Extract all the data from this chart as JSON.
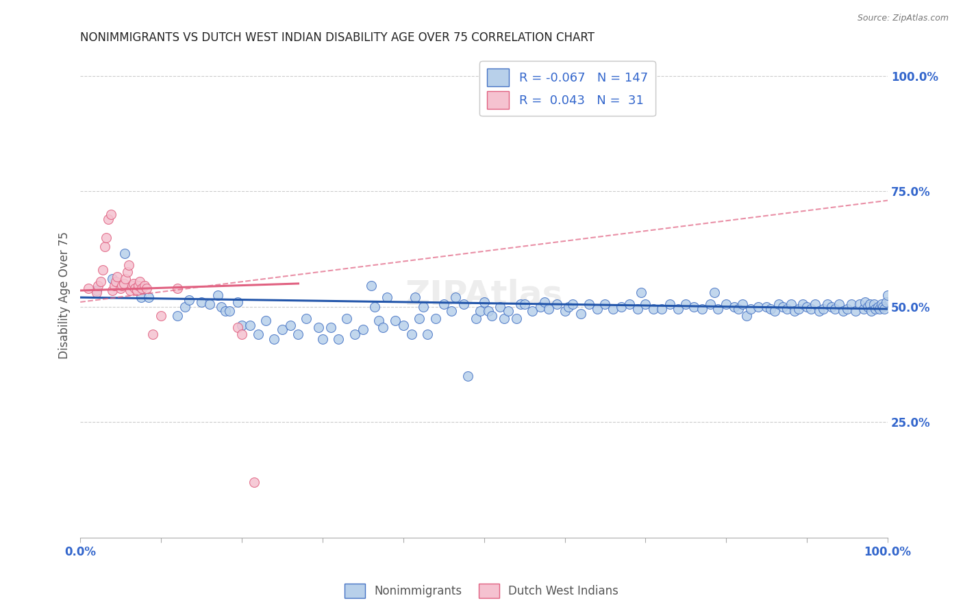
{
  "title": "NONIMMIGRANTS VS DUTCH WEST INDIAN DISABILITY AGE OVER 75 CORRELATION CHART",
  "source": "Source: ZipAtlas.com",
  "ylabel": "Disability Age Over 75",
  "legend_nonimmigrants": "Nonimmigrants",
  "legend_dutch": "Dutch West Indians",
  "R_nonimmigrants": -0.067,
  "N_nonimmigrants": 147,
  "R_dutch": 0.043,
  "N_dutch": 31,
  "blue_fill": "#b8d0ea",
  "blue_edge": "#4472c4",
  "pink_fill": "#f5c2d0",
  "pink_edge": "#e06080",
  "blue_trend_color": "#2255aa",
  "pink_trend_color": "#e06080",
  "axis_color": "#3366cc",
  "title_color": "#222222",
  "grid_color": "#cccccc",
  "bg_color": "#ffffff",
  "xlim": [
    0.0,
    1.0
  ],
  "ylim": [
    0.0,
    1.05
  ],
  "ytick_positions": [
    0.25,
    0.5,
    0.75,
    1.0
  ],
  "ytick_labels": [
    "25.0%",
    "50.0%",
    "75.0%",
    "100.0%"
  ],
  "blue_trendline": [
    [
      0.0,
      0.52
    ],
    [
      1.0,
      0.495
    ]
  ],
  "pink_solid_trendline": [
    [
      0.0,
      0.535
    ],
    [
      0.27,
      0.55
    ]
  ],
  "pink_dashed_trendline": [
    [
      0.0,
      0.51
    ],
    [
      1.0,
      0.73
    ]
  ],
  "blue_scatter": [
    [
      0.02,
      0.535
    ],
    [
      0.04,
      0.56
    ],
    [
      0.055,
      0.615
    ],
    [
      0.075,
      0.52
    ],
    [
      0.085,
      0.52
    ],
    [
      0.12,
      0.48
    ],
    [
      0.13,
      0.5
    ],
    [
      0.135,
      0.515
    ],
    [
      0.15,
      0.51
    ],
    [
      0.16,
      0.505
    ],
    [
      0.17,
      0.525
    ],
    [
      0.175,
      0.5
    ],
    [
      0.18,
      0.49
    ],
    [
      0.185,
      0.49
    ],
    [
      0.195,
      0.51
    ],
    [
      0.2,
      0.46
    ],
    [
      0.21,
      0.46
    ],
    [
      0.22,
      0.44
    ],
    [
      0.23,
      0.47
    ],
    [
      0.24,
      0.43
    ],
    [
      0.25,
      0.45
    ],
    [
      0.26,
      0.46
    ],
    [
      0.27,
      0.44
    ],
    [
      0.28,
      0.475
    ],
    [
      0.295,
      0.455
    ],
    [
      0.3,
      0.43
    ],
    [
      0.31,
      0.455
    ],
    [
      0.32,
      0.43
    ],
    [
      0.33,
      0.475
    ],
    [
      0.34,
      0.44
    ],
    [
      0.35,
      0.45
    ],
    [
      0.36,
      0.545
    ],
    [
      0.365,
      0.5
    ],
    [
      0.37,
      0.47
    ],
    [
      0.375,
      0.455
    ],
    [
      0.38,
      0.52
    ],
    [
      0.39,
      0.47
    ],
    [
      0.4,
      0.46
    ],
    [
      0.41,
      0.44
    ],
    [
      0.415,
      0.52
    ],
    [
      0.42,
      0.475
    ],
    [
      0.425,
      0.5
    ],
    [
      0.43,
      0.44
    ],
    [
      0.44,
      0.475
    ],
    [
      0.45,
      0.505
    ],
    [
      0.46,
      0.49
    ],
    [
      0.465,
      0.52
    ],
    [
      0.475,
      0.505
    ],
    [
      0.48,
      0.35
    ],
    [
      0.49,
      0.475
    ],
    [
      0.495,
      0.49
    ],
    [
      0.5,
      0.51
    ],
    [
      0.505,
      0.49
    ],
    [
      0.51,
      0.48
    ],
    [
      0.52,
      0.5
    ],
    [
      0.525,
      0.475
    ],
    [
      0.53,
      0.49
    ],
    [
      0.54,
      0.475
    ],
    [
      0.545,
      0.505
    ],
    [
      0.55,
      0.505
    ],
    [
      0.56,
      0.49
    ],
    [
      0.57,
      0.5
    ],
    [
      0.575,
      0.51
    ],
    [
      0.58,
      0.495
    ],
    [
      0.59,
      0.505
    ],
    [
      0.6,
      0.49
    ],
    [
      0.605,
      0.5
    ],
    [
      0.61,
      0.505
    ],
    [
      0.62,
      0.485
    ],
    [
      0.63,
      0.505
    ],
    [
      0.64,
      0.495
    ],
    [
      0.65,
      0.505
    ],
    [
      0.66,
      0.495
    ],
    [
      0.67,
      0.5
    ],
    [
      0.68,
      0.505
    ],
    [
      0.69,
      0.495
    ],
    [
      0.695,
      0.53
    ],
    [
      0.7,
      0.505
    ],
    [
      0.71,
      0.495
    ],
    [
      0.72,
      0.495
    ],
    [
      0.73,
      0.505
    ],
    [
      0.74,
      0.495
    ],
    [
      0.75,
      0.505
    ],
    [
      0.76,
      0.5
    ],
    [
      0.77,
      0.495
    ],
    [
      0.78,
      0.505
    ],
    [
      0.785,
      0.53
    ],
    [
      0.79,
      0.495
    ],
    [
      0.8,
      0.505
    ],
    [
      0.81,
      0.5
    ],
    [
      0.815,
      0.495
    ],
    [
      0.82,
      0.505
    ],
    [
      0.825,
      0.48
    ],
    [
      0.83,
      0.495
    ],
    [
      0.84,
      0.5
    ],
    [
      0.85,
      0.5
    ],
    [
      0.855,
      0.495
    ],
    [
      0.86,
      0.49
    ],
    [
      0.865,
      0.505
    ],
    [
      0.87,
      0.5
    ],
    [
      0.875,
      0.495
    ],
    [
      0.88,
      0.505
    ],
    [
      0.885,
      0.49
    ],
    [
      0.89,
      0.495
    ],
    [
      0.895,
      0.505
    ],
    [
      0.9,
      0.5
    ],
    [
      0.905,
      0.495
    ],
    [
      0.91,
      0.505
    ],
    [
      0.915,
      0.49
    ],
    [
      0.92,
      0.495
    ],
    [
      0.925,
      0.505
    ],
    [
      0.93,
      0.5
    ],
    [
      0.935,
      0.495
    ],
    [
      0.94,
      0.505
    ],
    [
      0.945,
      0.49
    ],
    [
      0.95,
      0.495
    ],
    [
      0.955,
      0.505
    ],
    [
      0.96,
      0.49
    ],
    [
      0.965,
      0.505
    ],
    [
      0.97,
      0.495
    ],
    [
      0.972,
      0.51
    ],
    [
      0.975,
      0.5
    ],
    [
      0.978,
      0.505
    ],
    [
      0.98,
      0.49
    ],
    [
      0.983,
      0.505
    ],
    [
      0.985,
      0.495
    ],
    [
      0.988,
      0.5
    ],
    [
      0.99,
      0.495
    ],
    [
      0.992,
      0.505
    ],
    [
      0.994,
      0.5
    ],
    [
      0.996,
      0.495
    ],
    [
      0.998,
      0.51
    ],
    [
      1.0,
      0.525
    ]
  ],
  "pink_scatter": [
    [
      0.01,
      0.54
    ],
    [
      0.02,
      0.53
    ],
    [
      0.022,
      0.545
    ],
    [
      0.025,
      0.555
    ],
    [
      0.028,
      0.58
    ],
    [
      0.03,
      0.63
    ],
    [
      0.032,
      0.65
    ],
    [
      0.035,
      0.69
    ],
    [
      0.038,
      0.7
    ],
    [
      0.04,
      0.535
    ],
    [
      0.042,
      0.545
    ],
    [
      0.044,
      0.555
    ],
    [
      0.046,
      0.565
    ],
    [
      0.05,
      0.54
    ],
    [
      0.052,
      0.545
    ],
    [
      0.054,
      0.55
    ],
    [
      0.056,
      0.56
    ],
    [
      0.058,
      0.575
    ],
    [
      0.06,
      0.59
    ],
    [
      0.062,
      0.535
    ],
    [
      0.064,
      0.545
    ],
    [
      0.066,
      0.55
    ],
    [
      0.068,
      0.54
    ],
    [
      0.07,
      0.535
    ],
    [
      0.072,
      0.545
    ],
    [
      0.074,
      0.555
    ],
    [
      0.076,
      0.54
    ],
    [
      0.08,
      0.545
    ],
    [
      0.082,
      0.54
    ],
    [
      0.09,
      0.44
    ],
    [
      0.1,
      0.48
    ],
    [
      0.12,
      0.54
    ],
    [
      0.195,
      0.455
    ],
    [
      0.2,
      0.44
    ],
    [
      0.215,
      0.12
    ]
  ]
}
